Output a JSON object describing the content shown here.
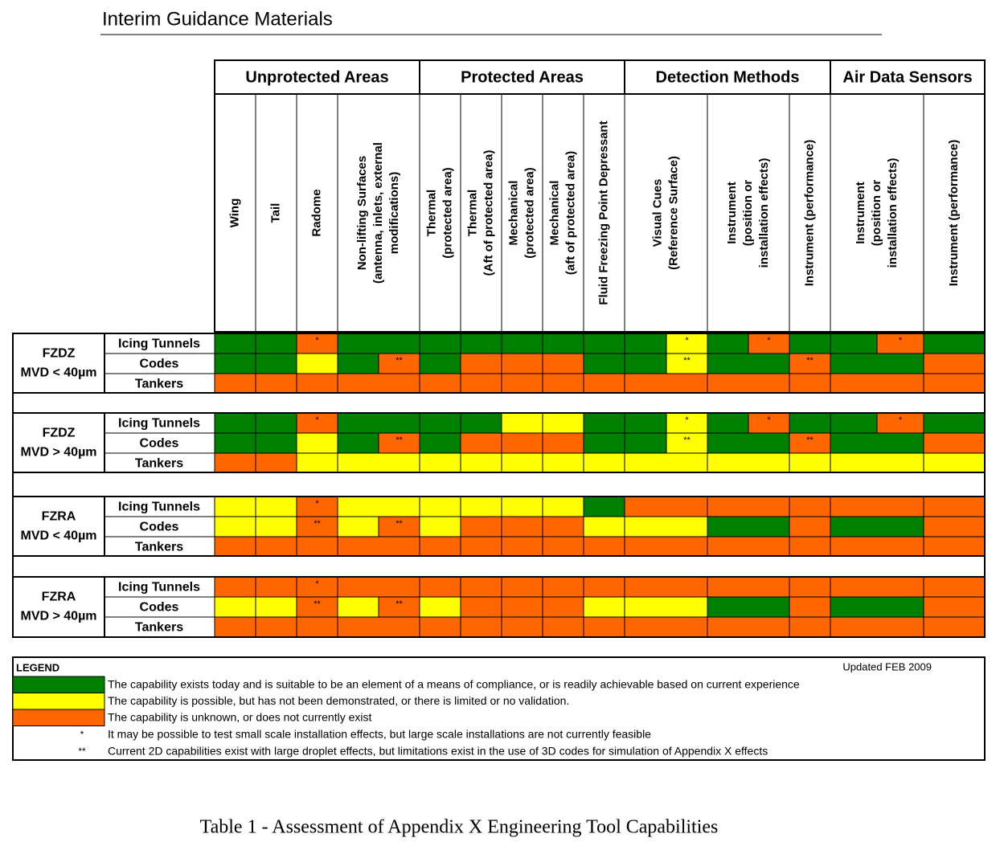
{
  "header": {
    "title": "Interim Guidance Materials"
  },
  "table": {
    "colors": {
      "g": "#008000",
      "y": "#ffff00",
      "o": "#ff6600"
    },
    "groups": [
      {
        "label": "Unprotected Areas",
        "columns": [
          [
            "Wing"
          ],
          [
            "Tail"
          ],
          [
            "Radome"
          ],
          [
            "Non-lifting Surfaces",
            "(antenna, inlets, external",
            "modifications)"
          ]
        ]
      },
      {
        "label": "Protected Areas",
        "columns": [
          [
            "Thermal",
            "(protected area)"
          ],
          [
            "Thermal",
            "(Aft of protected area)"
          ],
          [
            "Mechanical",
            "(protected area)"
          ],
          [
            "Mechanical",
            "(aft of protected area)"
          ],
          [
            "Fluid Freezing Point Depressant"
          ]
        ]
      },
      {
        "label": "Detection Methods",
        "columns": [
          [
            "Visual Cues",
            "(Reference Surface)"
          ],
          [
            "Instrument",
            "(position or",
            "installation effects)"
          ],
          [
            "Instrument (performance)"
          ]
        ]
      },
      {
        "label": "Air Data Sensors",
        "columns": [
          [
            "Instrument",
            "(position or",
            "installation effects)"
          ],
          [
            "Instrument (performance)"
          ]
        ]
      }
    ],
    "sections": [
      {
        "lines": [
          "FZDZ",
          "MVD < 40µm"
        ],
        "rows": [
          {
            "label": "Icing Tunnels",
            "cells": [
              {
                "color": "g"
              },
              {
                "color": "g"
              },
              {
                "color": "o",
                "note": "*"
              },
              {
                "color": "g"
              },
              {
                "color": "g"
              },
              {
                "color": "g"
              },
              {
                "color": "g"
              },
              {
                "color": "g"
              },
              {
                "color": "g"
              },
              {
                "color": "g"
              },
              {
                "color": "g"
              },
              {
                "color": "y",
                "note": "*"
              },
              {
                "color": "g"
              },
              {
                "color": "o",
                "note": "*"
              },
              {
                "color": "g"
              },
              {
                "color": "g"
              },
              {
                "color": "o",
                "note": "*"
              },
              {
                "color": "g"
              }
            ]
          },
          {
            "label": "Codes",
            "cells": [
              {
                "color": "g"
              },
              {
                "color": "g"
              },
              {
                "color": "y"
              },
              {
                "color": "g"
              },
              {
                "color": "o",
                "note": "**"
              },
              {
                "color": "g"
              },
              {
                "color": "o"
              },
              {
                "color": "o"
              },
              {
                "color": "o"
              },
              {
                "color": "g"
              },
              {
                "color": "g"
              },
              {
                "color": "y",
                "note": "**"
              },
              {
                "color": "g"
              },
              {
                "color": "g"
              },
              {
                "color": "o",
                "note": "**"
              },
              {
                "color": "g"
              },
              {
                "color": "g"
              },
              {
                "color": "o"
              }
            ]
          },
          {
            "label": "Tankers",
            "cells": [
              {
                "color": "o"
              },
              {
                "color": "o"
              },
              {
                "color": "o"
              },
              {
                "color": "o"
              },
              {
                "color": "o"
              },
              {
                "color": "o"
              },
              {
                "color": "o"
              },
              {
                "color": "o"
              },
              {
                "color": "o"
              },
              {
                "color": "o"
              },
              {
                "color": "o"
              },
              {
                "color": "o"
              },
              {
                "color": "o"
              },
              {
                "color": "o"
              },
              {
                "color": "o"
              },
              {
                "color": "o"
              },
              {
                "color": "o"
              },
              {
                "color": "o"
              }
            ]
          }
        ]
      },
      {
        "lines": [
          "FZDZ",
          "MVD > 40µm"
        ],
        "rows": [
          {
            "label": "Icing Tunnels",
            "cells": [
              {
                "color": "g"
              },
              {
                "color": "g"
              },
              {
                "color": "o",
                "note": "*"
              },
              {
                "color": "g"
              },
              {
                "color": "g"
              },
              {
                "color": "g"
              },
              {
                "color": "g"
              },
              {
                "color": "y"
              },
              {
                "color": "y"
              },
              {
                "color": "g"
              },
              {
                "color": "g"
              },
              {
                "color": "y",
                "note": "*"
              },
              {
                "color": "g"
              },
              {
                "color": "o",
                "note": "*"
              },
              {
                "color": "g"
              },
              {
                "color": "g"
              },
              {
                "color": "o",
                "note": "*"
              },
              {
                "color": "g"
              }
            ]
          },
          {
            "label": "Codes",
            "cells": [
              {
                "color": "g"
              },
              {
                "color": "g"
              },
              {
                "color": "y"
              },
              {
                "color": "g"
              },
              {
                "color": "o",
                "note": "**"
              },
              {
                "color": "g"
              },
              {
                "color": "o"
              },
              {
                "color": "o"
              },
              {
                "color": "o"
              },
              {
                "color": "g"
              },
              {
                "color": "g"
              },
              {
                "color": "y",
                "note": "**"
              },
              {
                "color": "g"
              },
              {
                "color": "g"
              },
              {
                "color": "o",
                "note": "**"
              },
              {
                "color": "g"
              },
              {
                "color": "g"
              },
              {
                "color": "o"
              }
            ]
          },
          {
            "label": "Tankers",
            "cells": [
              {
                "color": "o"
              },
              {
                "color": "o"
              },
              {
                "color": "y"
              },
              {
                "color": "y"
              },
              {
                "color": "y"
              },
              {
                "color": "y"
              },
              {
                "color": "y"
              },
              {
                "color": "y"
              },
              {
                "color": "y"
              },
              {
                "color": "y"
              },
              {
                "color": "y"
              },
              {
                "color": "y"
              },
              {
                "color": "y"
              },
              {
                "color": "y"
              },
              {
                "color": "y"
              },
              {
                "color": "y"
              },
              {
                "color": "y"
              },
              {
                "color": "y"
              }
            ]
          }
        ]
      },
      {
        "lines": [
          "FZRA",
          "MVD < 40µm"
        ],
        "rows": [
          {
            "label": "Icing Tunnels",
            "cells": [
              {
                "color": "y"
              },
              {
                "color": "y"
              },
              {
                "color": "o",
                "note": "*"
              },
              {
                "color": "y"
              },
              {
                "color": "y"
              },
              {
                "color": "y"
              },
              {
                "color": "y"
              },
              {
                "color": "y"
              },
              {
                "color": "y"
              },
              {
                "color": "g"
              },
              {
                "color": "o"
              },
              {
                "color": "o"
              },
              {
                "color": "o"
              },
              {
                "color": "o"
              },
              {
                "color": "o"
              },
              {
                "color": "o"
              },
              {
                "color": "o"
              },
              {
                "color": "o"
              }
            ]
          },
          {
            "label": "Codes",
            "cells": [
              {
                "color": "y"
              },
              {
                "color": "y"
              },
              {
                "color": "o",
                "note": "**"
              },
              {
                "color": "y"
              },
              {
                "color": "o",
                "note": "**"
              },
              {
                "color": "y"
              },
              {
                "color": "o"
              },
              {
                "color": "o"
              },
              {
                "color": "o"
              },
              {
                "color": "y"
              },
              {
                "color": "y"
              },
              {
                "color": "y"
              },
              {
                "color": "g"
              },
              {
                "color": "g"
              },
              {
                "color": "o"
              },
              {
                "color": "g"
              },
              {
                "color": "g"
              },
              {
                "color": "o"
              }
            ]
          },
          {
            "label": "Tankers",
            "cells": [
              {
                "color": "o"
              },
              {
                "color": "o"
              },
              {
                "color": "o"
              },
              {
                "color": "o"
              },
              {
                "color": "o"
              },
              {
                "color": "o"
              },
              {
                "color": "o"
              },
              {
                "color": "o"
              },
              {
                "color": "o"
              },
              {
                "color": "o"
              },
              {
                "color": "o"
              },
              {
                "color": "o"
              },
              {
                "color": "o"
              },
              {
                "color": "o"
              },
              {
                "color": "o"
              },
              {
                "color": "o"
              },
              {
                "color": "o"
              },
              {
                "color": "o"
              }
            ]
          }
        ]
      },
      {
        "lines": [
          "FZRA",
          "MVD > 40µm"
        ],
        "rows": [
          {
            "label": "Icing Tunnels",
            "cells": [
              {
                "color": "o"
              },
              {
                "color": "o"
              },
              {
                "color": "o",
                "note": "*"
              },
              {
                "color": "o"
              },
              {
                "color": "o"
              },
              {
                "color": "o"
              },
              {
                "color": "o"
              },
              {
                "color": "o"
              },
              {
                "color": "o"
              },
              {
                "color": "o"
              },
              {
                "color": "o"
              },
              {
                "color": "o"
              },
              {
                "color": "o"
              },
              {
                "color": "o"
              },
              {
                "color": "o"
              },
              {
                "color": "o"
              },
              {
                "color": "o"
              },
              {
                "color": "o"
              }
            ]
          },
          {
            "label": "Codes",
            "cells": [
              {
                "color": "y"
              },
              {
                "color": "y"
              },
              {
                "color": "o",
                "note": "**"
              },
              {
                "color": "y"
              },
              {
                "color": "o",
                "note": "**"
              },
              {
                "color": "y"
              },
              {
                "color": "o"
              },
              {
                "color": "o"
              },
              {
                "color": "o"
              },
              {
                "color": "y"
              },
              {
                "color": "y"
              },
              {
                "color": "y"
              },
              {
                "color": "g"
              },
              {
                "color": "g"
              },
              {
                "color": "o"
              },
              {
                "color": "g"
              },
              {
                "color": "g"
              },
              {
                "color": "o"
              }
            ]
          },
          {
            "label": "Tankers",
            "cells": [
              {
                "color": "o"
              },
              {
                "color": "o"
              },
              {
                "color": "o"
              },
              {
                "color": "o"
              },
              {
                "color": "o"
              },
              {
                "color": "o"
              },
              {
                "color": "o"
              },
              {
                "color": "o"
              },
              {
                "color": "o"
              },
              {
                "color": "o"
              },
              {
                "color": "o"
              },
              {
                "color": "o"
              },
              {
                "color": "o"
              },
              {
                "color": "o"
              },
              {
                "color": "o"
              },
              {
                "color": "o"
              },
              {
                "color": "o"
              },
              {
                "color": "o"
              }
            ]
          }
        ]
      }
    ]
  },
  "legend": {
    "title": "LEGEND",
    "updated": "Updated FEB 2009",
    "items": [
      {
        "color": "g",
        "text": "The capability exists today and is suitable to be an element of a means of compliance, or is readily achievable based on current experience"
      },
      {
        "color": "y",
        "text": "The capability is possible, but has not been demonstrated, or there is limited or no validation."
      },
      {
        "color": "o",
        "text": "The capability is unknown, or does not currently exist"
      }
    ],
    "notes": [
      {
        "mark": "*",
        "text": "It may be possible to test small scale installation effects, but large scale installations are not currently feasible"
      },
      {
        "mark": "**",
        "text": "Current 2D capabilities exist with large droplet effects, but limitations exist in the use of 3D codes for simulation of Appendix X effects"
      }
    ]
  },
  "caption": "Table 1 - Assessment of Appendix X Engineering Tool Capabilities"
}
